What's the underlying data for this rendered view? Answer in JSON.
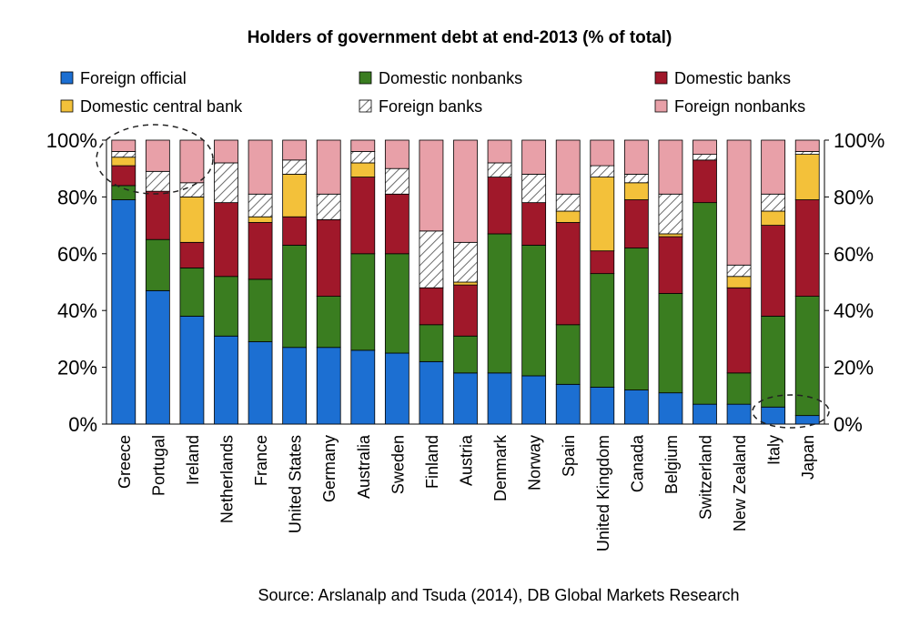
{
  "chart_data": {
    "type": "bar",
    "stacked": true,
    "title": "Holders of government debt at end-2013 (% of total)",
    "source": "Source: Arslanalp and Tsuda (2014), DB Global Markets Research",
    "ylim": [
      0,
      100
    ],
    "yticks": [
      "0%",
      "20%",
      "40%",
      "60%",
      "80%",
      "100%"
    ],
    "legend_position": "top",
    "categories": [
      "Greece",
      "Portugal",
      "Ireland",
      "Netherlands",
      "France",
      "United States",
      "Germany",
      "Australia",
      "Sweden",
      "Finland",
      "Austria",
      "Denmark",
      "Norway",
      "Spain",
      "United Kingdom",
      "Canada",
      "Belgium",
      "Switzerland",
      "New Zealand",
      "Italy",
      "Japan"
    ],
    "series": [
      {
        "name": "Foreign official",
        "color": "#1c6fd2",
        "pattern": "solid",
        "values": [
          79,
          47,
          38,
          31,
          29,
          27,
          27,
          26,
          25,
          22,
          18,
          18,
          17,
          14,
          13,
          12,
          11,
          7,
          7,
          6,
          3
        ]
      },
      {
        "name": "Domestic nonbanks",
        "color": "#3a7d20",
        "pattern": "solid",
        "values": [
          5,
          18,
          17,
          21,
          22,
          36,
          18,
          34,
          35,
          13,
          13,
          49,
          46,
          21,
          40,
          50,
          35,
          71,
          11,
          32,
          42
        ]
      },
      {
        "name": "Domestic banks",
        "color": "#a0182a",
        "pattern": "solid",
        "values": [
          7,
          17,
          9,
          26,
          20,
          10,
          27,
          27,
          21,
          13,
          18,
          20,
          15,
          36,
          8,
          17,
          20,
          15,
          30,
          32,
          34
        ]
      },
      {
        "name": "Domestic central bank",
        "color": "#f3c13a",
        "pattern": "solid",
        "values": [
          3,
          0,
          16,
          0,
          2,
          15,
          0,
          5,
          0,
          0,
          1,
          0,
          0,
          4,
          26,
          6,
          1,
          0,
          4,
          5,
          16
        ]
      },
      {
        "name": "Foreign banks",
        "color": "#ffffff",
        "pattern": "hatch",
        "values": [
          2,
          7,
          5,
          14,
          8,
          5,
          9,
          4,
          9,
          20,
          14,
          5,
          10,
          6,
          4,
          3,
          14,
          2,
          4,
          6,
          1
        ]
      },
      {
        "name": "Foreign nonbanks",
        "color": "#e8a0a8",
        "pattern": "solid",
        "values": [
          4,
          11,
          15,
          8,
          19,
          7,
          19,
          4,
          10,
          32,
          36,
          8,
          12,
          19,
          9,
          12,
          19,
          5,
          44,
          19,
          4
        ]
      }
    ],
    "annotations": [
      "dashed ellipse around Greece, Portugal and Ireland tops",
      "dashed ellipse around Italy and Japan bottoms"
    ]
  }
}
